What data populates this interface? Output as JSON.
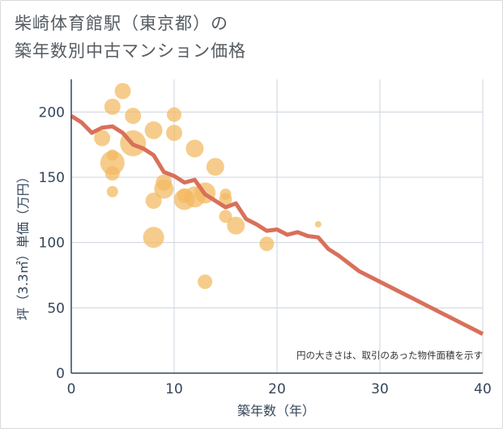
{
  "title_line1": "柴崎体育館駅（東京都）の",
  "title_line2": "築年数別中古マンション価格",
  "note": "円の大きさは、取引のあった物件面積を示す",
  "colors": {
    "line": "#d9705a",
    "bubble": "#f3b95f",
    "grid": "#cdd5dc",
    "axis": "#35465a"
  },
  "chart_data": {
    "type": "scatter",
    "xlabel": "築年数（年）",
    "ylabel": "坪（3.3㎡）単価（万円）",
    "xlim": [
      0,
      40
    ],
    "ylim": [
      0,
      225
    ],
    "xticks": [
      0,
      10,
      20,
      30,
      40
    ],
    "yticks": [
      0,
      50,
      100,
      150,
      200
    ],
    "grid": true,
    "line": {
      "x": [
        0,
        1,
        2,
        3,
        4,
        5,
        6,
        7,
        8,
        9,
        10,
        11,
        12,
        13,
        14,
        15,
        16,
        17,
        18,
        19,
        20,
        21,
        22,
        23,
        24,
        25,
        26,
        27,
        28,
        29,
        30,
        31,
        32,
        33,
        34,
        35,
        36,
        37,
        38,
        39,
        40
      ],
      "y": [
        197,
        192,
        184,
        188,
        189,
        184,
        175,
        172,
        167,
        154,
        151,
        146,
        148,
        137,
        132,
        127,
        130,
        118,
        114,
        109,
        110,
        106,
        108,
        105,
        104,
        95,
        90,
        84,
        78,
        74,
        70,
        66,
        62,
        58,
        54,
        50,
        46,
        42,
        38,
        34,
        30
      ]
    },
    "bubbles": [
      {
        "x": 3,
        "y": 180,
        "size": 10
      },
      {
        "x": 4,
        "y": 204,
        "size": 10
      },
      {
        "x": 4,
        "y": 161,
        "size": 15
      },
      {
        "x": 4,
        "y": 153,
        "size": 9
      },
      {
        "x": 4,
        "y": 167,
        "size": 7
      },
      {
        "x": 4,
        "y": 139,
        "size": 7
      },
      {
        "x": 5,
        "y": 216,
        "size": 10
      },
      {
        "x": 6,
        "y": 197,
        "size": 10
      },
      {
        "x": 6,
        "y": 176,
        "size": 16
      },
      {
        "x": 8,
        "y": 186,
        "size": 11
      },
      {
        "x": 8,
        "y": 132,
        "size": 10
      },
      {
        "x": 8,
        "y": 104,
        "size": 13
      },
      {
        "x": 9,
        "y": 146,
        "size": 10
      },
      {
        "x": 9,
        "y": 141,
        "size": 12
      },
      {
        "x": 10,
        "y": 198,
        "size": 9
      },
      {
        "x": 10,
        "y": 184,
        "size": 10
      },
      {
        "x": 11,
        "y": 133,
        "size": 13
      },
      {
        "x": 11,
        "y": 136,
        "size": 9
      },
      {
        "x": 12,
        "y": 172,
        "size": 11
      },
      {
        "x": 12,
        "y": 135,
        "size": 13
      },
      {
        "x": 13,
        "y": 138,
        "size": 13
      },
      {
        "x": 13,
        "y": 70,
        "size": 9
      },
      {
        "x": 14,
        "y": 158,
        "size": 11
      },
      {
        "x": 15,
        "y": 137,
        "size": 7
      },
      {
        "x": 15,
        "y": 133,
        "size": 8
      },
      {
        "x": 15,
        "y": 120,
        "size": 8
      },
      {
        "x": 16,
        "y": 113,
        "size": 11
      },
      {
        "x": 19,
        "y": 99,
        "size": 9
      },
      {
        "x": 24,
        "y": 114,
        "size": 4
      }
    ]
  }
}
